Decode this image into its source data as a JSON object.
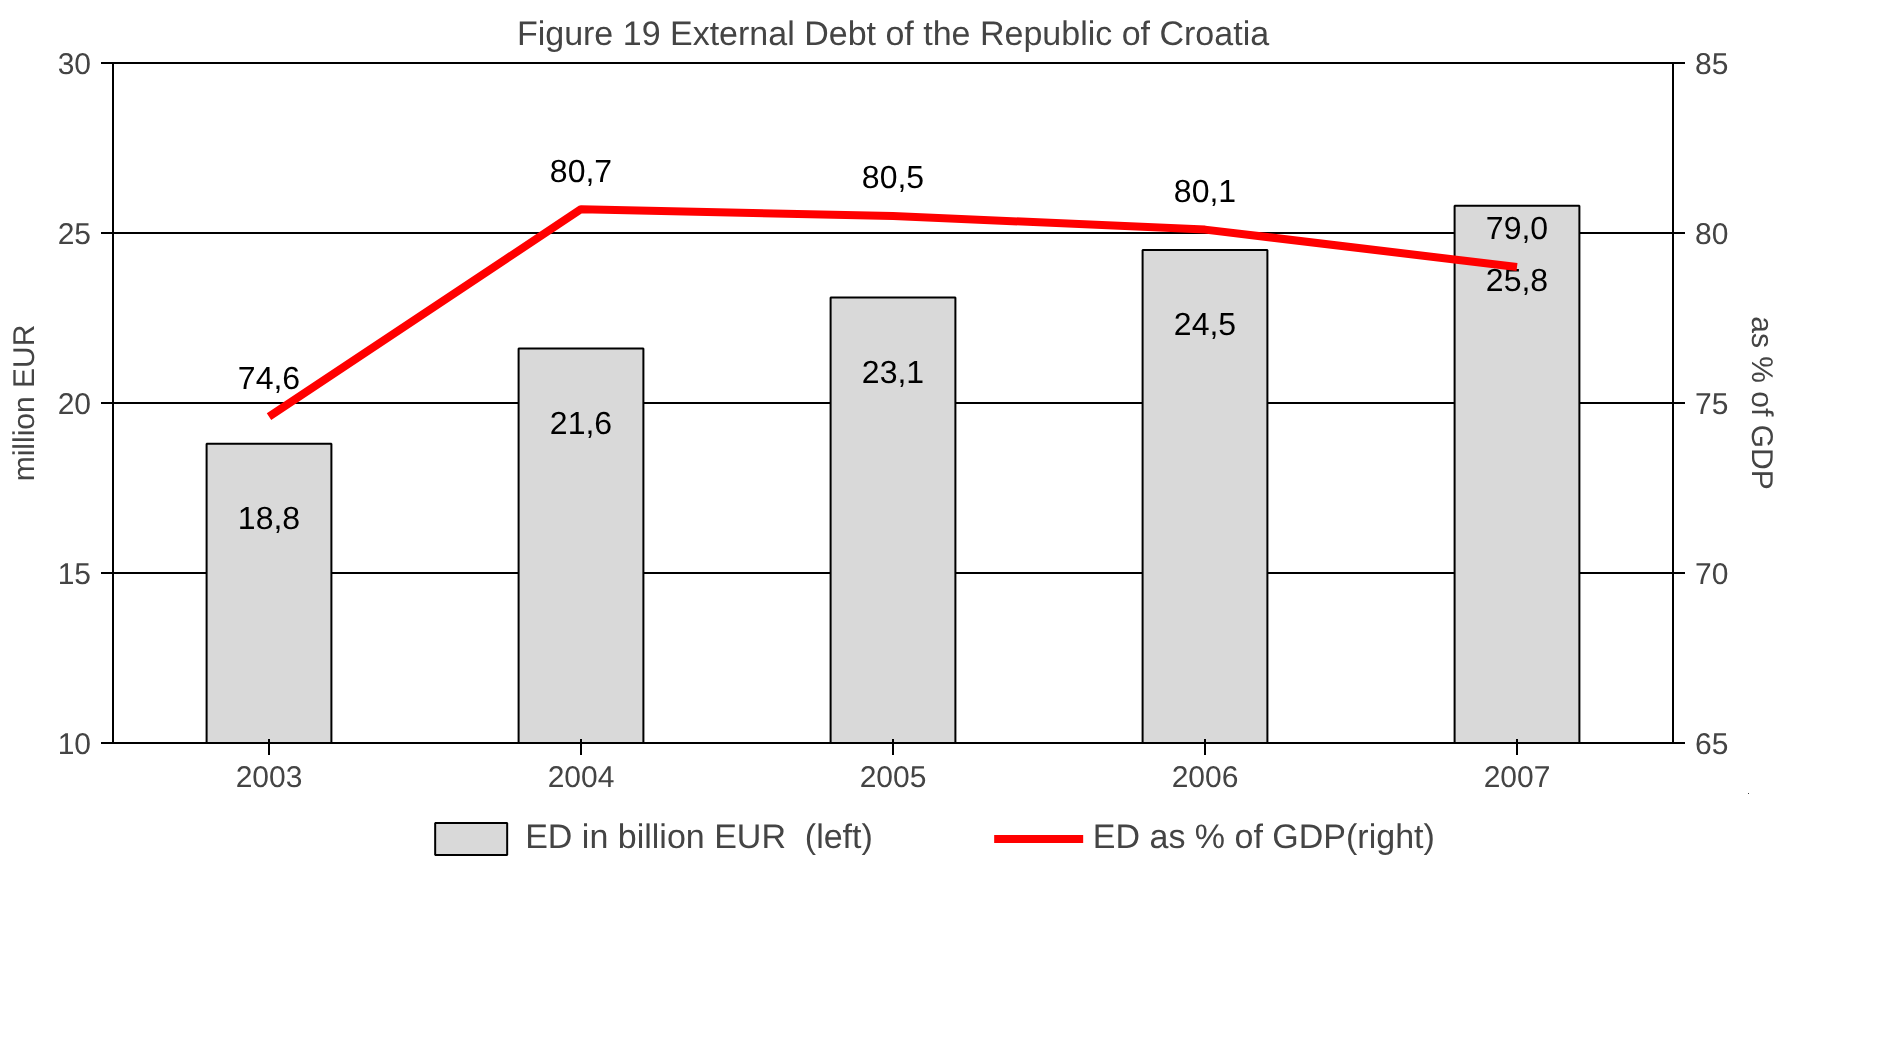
{
  "chart_data": {
    "type": "bar",
    "title": "Figure 19 External Debt of the Republic of Croatia",
    "ylabel": "million EUR",
    "y2label": "as % of GDP",
    "categories": [
      "2003",
      "2004",
      "2005",
      "2006",
      "2007"
    ],
    "series": [
      {
        "name": "ED in billion EUR  (left)",
        "color": "#d9d9d9",
        "values": [
          18.8,
          21.6,
          23.1,
          24.5,
          25.8
        ],
        "value_labels": [
          "18,8",
          "21,6",
          "23,1",
          "24,5",
          "25,8"
        ]
      },
      {
        "name": "ED as % of GDP(right)",
        "type": "line",
        "axis": "y2",
        "color": "#ff0000",
        "values": [
          74.6,
          80.7,
          80.5,
          80.1,
          79.0
        ],
        "value_labels": [
          "74,6",
          "80,7",
          "80,5",
          "80,1",
          "79,0"
        ]
      }
    ],
    "ylim": [
      10,
      30
    ],
    "yticks": [
      10,
      15,
      20,
      25,
      30
    ],
    "y2lim": [
      65,
      85
    ],
    "y2ticks": [
      65,
      70,
      75,
      80,
      85
    ],
    "grid": "y",
    "legend": "bottom",
    "marker": "none",
    "line_style": "solid"
  }
}
